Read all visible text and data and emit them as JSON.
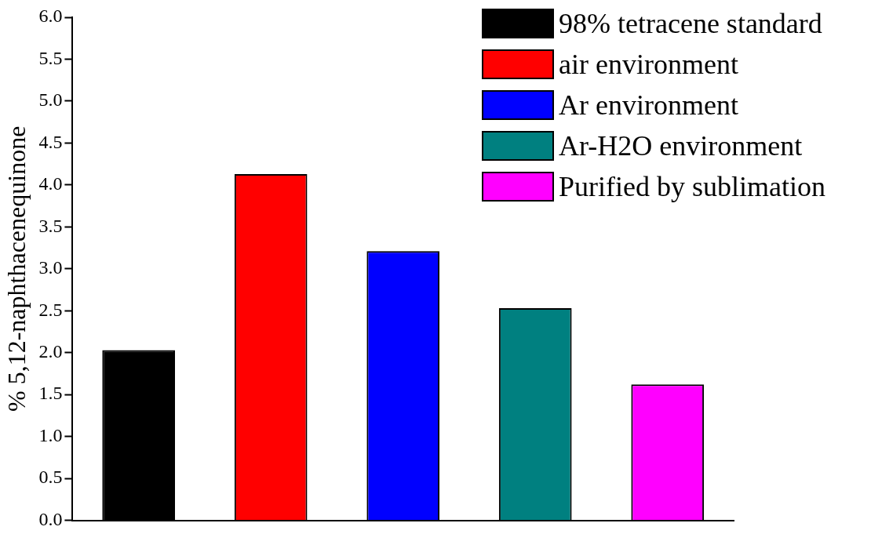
{
  "chart_data": {
    "type": "bar",
    "ylabel": "% 5,12-naphthacenequinone",
    "categories": [
      null,
      null,
      null,
      null,
      null
    ],
    "series": [
      {
        "name": "98% tetracene standard",
        "color": "#000000",
        "values": [
          2.03,
          null,
          null,
          null,
          null
        ]
      },
      {
        "name": "air environment",
        "color": "#ff0000",
        "values": [
          null,
          4.13,
          null,
          null,
          null
        ]
      },
      {
        "name": "Ar environment",
        "color": "#0000ff",
        "values": [
          null,
          null,
          3.21,
          null,
          null
        ]
      },
      {
        "name": "Ar-H2O environment",
        "color": "#008080",
        "values": [
          null,
          null,
          null,
          2.53,
          null
        ]
      },
      {
        "name": "Purified by sublimation",
        "color": "#ff00ff",
        "values": [
          null,
          null,
          null,
          null,
          1.62
        ]
      }
    ],
    "ylim": [
      0,
      6
    ],
    "yticks": [
      {
        "value": 0,
        "label": "0.0"
      },
      {
        "value": 0.5,
        "label": "0.5"
      },
      {
        "value": 1,
        "label": "1.0"
      },
      {
        "value": 1.5,
        "label": "1.5"
      },
      {
        "value": 2,
        "label": "2.0"
      },
      {
        "value": 2.5,
        "label": "2.5"
      },
      {
        "value": 3,
        "label": "3.0"
      },
      {
        "value": 3.5,
        "label": "3.5"
      },
      {
        "value": 4,
        "label": "4.0"
      },
      {
        "value": 4.5,
        "label": "4.5"
      },
      {
        "value": 5,
        "label": "5.0"
      },
      {
        "value": 5.5,
        "label": "5.5"
      },
      {
        "value": 6,
        "label": "6.0"
      }
    ],
    "grid": false,
    "legend": "top right"
  }
}
